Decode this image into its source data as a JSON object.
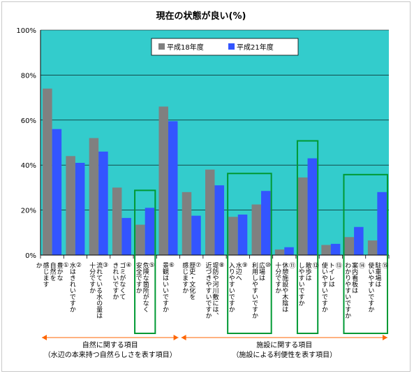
{
  "chart_data": {
    "type": "bar",
    "title": "現在の状態が良い(%)",
    "ylim": [
      0,
      100
    ],
    "yticks": [
      "0%",
      "20%",
      "40%",
      "60%",
      "80%",
      "100%"
    ],
    "categories": [
      "①豊かな自然を感じますか",
      "②水はきれいですか",
      "③流れている水の量は十分ですか",
      "④ゴミがなくてきれいですか",
      "⑤危険な箇所がなく安全ですか",
      "⑥景観はいいですか",
      "⑦歴史・文化を感じますか",
      "⑧堤防や河川敷には、近づきやすいですか",
      "⑨水辺へ入りやすいですか",
      "⑩広場は利用しやすいですか",
      "⑪休憩施設や木陰は十分ですか",
      "⑫散歩はしやすいですか",
      "⑬トイレは使いやすいですか",
      "⑭案内看板はわかりやすいですか",
      "⑮駐車場は使いやすいですか"
    ],
    "category_lines": [
      [
        "①",
        "豊かな",
        "自然を",
        "感じます",
        "か"
      ],
      [
        "②",
        "水はきれいですか"
      ],
      [
        "③",
        "流れている水の量は",
        "十分ですか"
      ],
      [
        "④",
        "ゴミがなくて",
        "きれいですか"
      ],
      [
        "⑤",
        "危険な箇所がなく",
        "安全ですか"
      ],
      [
        "⑥",
        "景観はいいですか"
      ],
      [
        "⑦",
        "歴史・文化を",
        "感じますか"
      ],
      [
        "⑧",
        "堤防や河川敷には、",
        "近づきやすいですか"
      ],
      [
        "⑨",
        "水辺へ",
        "入りやすいですか"
      ],
      [
        "⑩",
        "広場は",
        "利用しやすいですか"
      ],
      [
        "⑪",
        "休憩施設や木陰は",
        "十分ですか"
      ],
      [
        "⑫",
        "散歩は",
        "しやすいですか"
      ],
      [
        "⑬",
        "トイレは",
        "使いやすいですか"
      ],
      [
        "⑭",
        "案内看板は",
        "わかりやすいですか"
      ],
      [
        "⑮",
        "駐車場は",
        "使いやすいですか"
      ]
    ],
    "series": [
      {
        "name": "平成18年度",
        "color": "#808080",
        "values": [
          74,
          44,
          52,
          30,
          13.5,
          66,
          28,
          38,
          17,
          22.5,
          2.5,
          34.5,
          4.5,
          8,
          6.5
        ]
      },
      {
        "name": "平成21年度",
        "color": "#3355ff",
        "values": [
          56,
          41,
          46,
          16.5,
          21,
          59.5,
          17.5,
          31,
          18,
          28.5,
          3.5,
          43,
          5,
          12.5,
          28
        ]
      }
    ],
    "highlighted_categories": [
      [
        4,
        4
      ],
      [
        8,
        9
      ],
      [
        11,
        11
      ],
      [
        13,
        14
      ]
    ],
    "highlight_color": "#009933",
    "plot_background": "#33cccc",
    "grid": true,
    "legend_placement": "top-center",
    "groups": [
      {
        "line1": "自然に関する項目",
        "line2": "（水辺の本来持つ自然らしさを表す項目）",
        "from": 0,
        "to": 5
      },
      {
        "line1": "施設に関する項目",
        "line2": "（施設による利便性を表す項目）",
        "from": 6,
        "to": 14
      }
    ],
    "group_arrow_color": "#ff6600"
  }
}
